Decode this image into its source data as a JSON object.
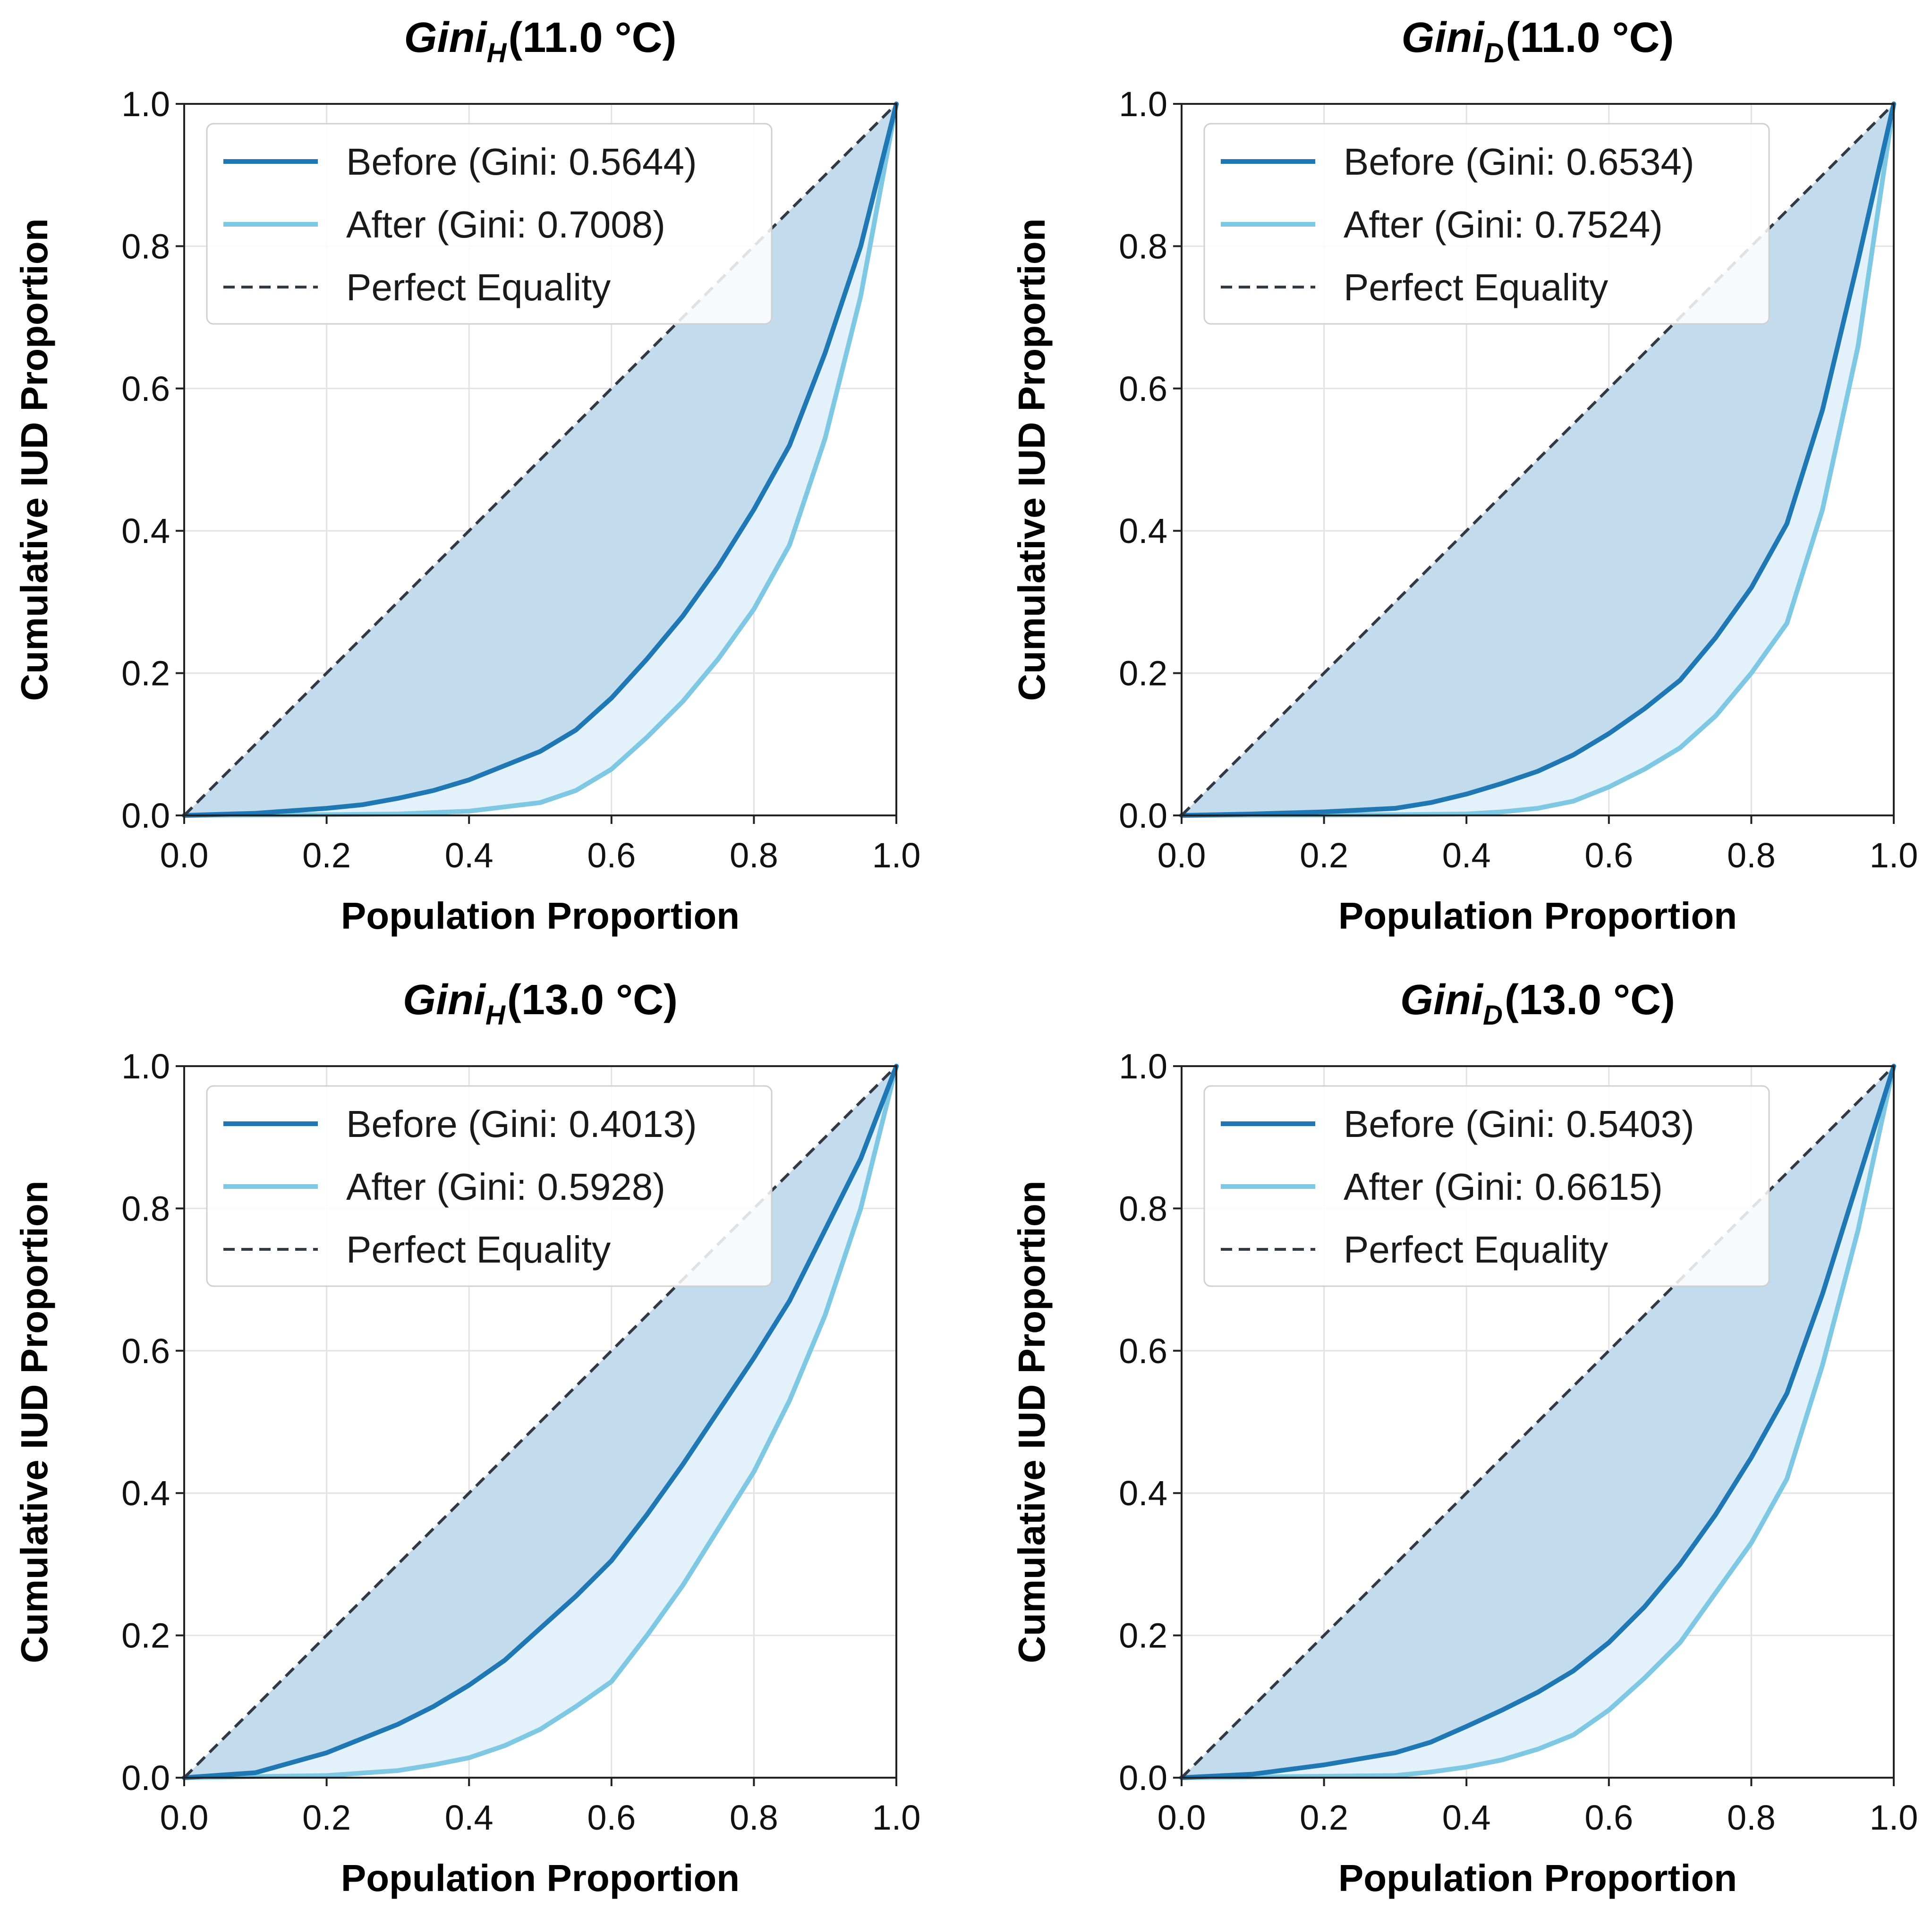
{
  "colors": {
    "before": "#1f77b4",
    "after": "#7ec8e3",
    "equality": "#2f3a45",
    "fill_before": "#c2dcee",
    "fill_after": "#e3f2fa"
  },
  "chart_data": [
    {
      "type": "line",
      "title_main": "Gini",
      "title_sub": "H",
      "title_rest": "(11.0 °C)",
      "xlabel": "Population Proportion",
      "ylabel": "Cumulative IUD Proportion",
      "xlim": [
        0,
        1
      ],
      "ylim": [
        0,
        1
      ],
      "xticks": [
        "0.0",
        "0.2",
        "0.4",
        "0.6",
        "0.8",
        "1.0"
      ],
      "yticks": [
        "0.0",
        "0.2",
        "0.4",
        "0.6",
        "0.8",
        "1.0"
      ],
      "grid": true,
      "legend_position": "top-left",
      "series": [
        {
          "name": "Before (Gini: 0.5644)",
          "role": "before",
          "x": [
            0,
            0.1,
            0.2,
            0.25,
            0.3,
            0.35,
            0.4,
            0.45,
            0.5,
            0.55,
            0.6,
            0.65,
            0.7,
            0.75,
            0.8,
            0.85,
            0.9,
            0.95,
            1.0
          ],
          "y": [
            0,
            0.003,
            0.01,
            0.015,
            0.024,
            0.035,
            0.05,
            0.07,
            0.09,
            0.12,
            0.165,
            0.22,
            0.28,
            0.35,
            0.43,
            0.52,
            0.65,
            0.8,
            1.0
          ]
        },
        {
          "name": "After (Gini: 0.7008)",
          "role": "after",
          "x": [
            0,
            0.2,
            0.3,
            0.4,
            0.5,
            0.55,
            0.6,
            0.65,
            0.7,
            0.75,
            0.8,
            0.85,
            0.9,
            0.95,
            1.0
          ],
          "y": [
            0,
            0.001,
            0.002,
            0.006,
            0.018,
            0.035,
            0.065,
            0.11,
            0.16,
            0.22,
            0.29,
            0.38,
            0.53,
            0.73,
            1.0
          ]
        },
        {
          "name": "Perfect Equality",
          "role": "equality",
          "x": [
            0,
            1
          ],
          "y": [
            0,
            1
          ]
        }
      ]
    },
    {
      "type": "line",
      "title_main": "Gini",
      "title_sub": "D",
      "title_rest": "(11.0 °C)",
      "xlabel": "Population Proportion",
      "ylabel": "Cumulative IUD Proportion",
      "xlim": [
        0,
        1
      ],
      "ylim": [
        0,
        1
      ],
      "xticks": [
        "0.0",
        "0.2",
        "0.4",
        "0.6",
        "0.8",
        "1.0"
      ],
      "yticks": [
        "0.0",
        "0.2",
        "0.4",
        "0.6",
        "0.8",
        "1.0"
      ],
      "grid": true,
      "legend_position": "top-left",
      "series": [
        {
          "name": "Before (Gini: 0.6534)",
          "role": "before",
          "x": [
            0,
            0.1,
            0.2,
            0.3,
            0.35,
            0.4,
            0.45,
            0.5,
            0.55,
            0.6,
            0.65,
            0.7,
            0.75,
            0.8,
            0.85,
            0.9,
            0.95,
            1.0
          ],
          "y": [
            0,
            0.002,
            0.005,
            0.01,
            0.018,
            0.03,
            0.045,
            0.062,
            0.085,
            0.115,
            0.15,
            0.19,
            0.25,
            0.32,
            0.41,
            0.57,
            0.78,
            1.0
          ]
        },
        {
          "name": "After (Gini: 0.7524)",
          "role": "after",
          "x": [
            0,
            0.3,
            0.4,
            0.45,
            0.5,
            0.55,
            0.6,
            0.65,
            0.7,
            0.75,
            0.8,
            0.85,
            0.9,
            0.95,
            1.0
          ],
          "y": [
            0,
            0.001,
            0.002,
            0.005,
            0.01,
            0.02,
            0.04,
            0.065,
            0.095,
            0.14,
            0.2,
            0.27,
            0.43,
            0.66,
            1.0
          ]
        },
        {
          "name": "Perfect Equality",
          "role": "equality",
          "x": [
            0,
            1
          ],
          "y": [
            0,
            1
          ]
        }
      ]
    },
    {
      "type": "line",
      "title_main": "Gini",
      "title_sub": "H",
      "title_rest": "(13.0 °C)",
      "xlabel": "Population Proportion",
      "ylabel": "Cumulative IUD Proportion",
      "xlim": [
        0,
        1
      ],
      "ylim": [
        0,
        1
      ],
      "xticks": [
        "0.0",
        "0.2",
        "0.4",
        "0.6",
        "0.8",
        "1.0"
      ],
      "yticks": [
        "0.0",
        "0.2",
        "0.4",
        "0.6",
        "0.8",
        "1.0"
      ],
      "grid": true,
      "legend_position": "top-left",
      "series": [
        {
          "name": "Before (Gini: 0.4013)",
          "role": "before",
          "x": [
            0,
            0.1,
            0.2,
            0.3,
            0.35,
            0.4,
            0.45,
            0.5,
            0.55,
            0.6,
            0.65,
            0.7,
            0.75,
            0.8,
            0.85,
            0.9,
            0.95,
            1.0
          ],
          "y": [
            0,
            0.007,
            0.035,
            0.075,
            0.1,
            0.13,
            0.165,
            0.21,
            0.255,
            0.305,
            0.37,
            0.44,
            0.515,
            0.59,
            0.67,
            0.77,
            0.87,
            1.0
          ]
        },
        {
          "name": "After (Gini: 0.5928)",
          "role": "after",
          "x": [
            0,
            0.2,
            0.3,
            0.35,
            0.4,
            0.45,
            0.5,
            0.55,
            0.6,
            0.65,
            0.7,
            0.75,
            0.8,
            0.85,
            0.9,
            0.95,
            1.0
          ],
          "y": [
            0,
            0.003,
            0.01,
            0.018,
            0.028,
            0.045,
            0.068,
            0.1,
            0.135,
            0.2,
            0.27,
            0.35,
            0.43,
            0.53,
            0.65,
            0.8,
            1.0
          ]
        },
        {
          "name": "Perfect Equality",
          "role": "equality",
          "x": [
            0,
            1
          ],
          "y": [
            0,
            1
          ]
        }
      ]
    },
    {
      "type": "line",
      "title_main": "Gini",
      "title_sub": "D",
      "title_rest": "(13.0 °C)",
      "xlabel": "Population Proportion",
      "ylabel": "Cumulative IUD Proportion",
      "xlim": [
        0,
        1
      ],
      "ylim": [
        0,
        1
      ],
      "xticks": [
        "0.0",
        "0.2",
        "0.4",
        "0.6",
        "0.8",
        "1.0"
      ],
      "yticks": [
        "0.0",
        "0.2",
        "0.4",
        "0.6",
        "0.8",
        "1.0"
      ],
      "grid": true,
      "legend_position": "top-left",
      "series": [
        {
          "name": "Before (Gini: 0.5403)",
          "role": "before",
          "x": [
            0,
            0.1,
            0.2,
            0.3,
            0.35,
            0.4,
            0.45,
            0.5,
            0.55,
            0.6,
            0.65,
            0.7,
            0.75,
            0.8,
            0.85,
            0.9,
            0.95,
            1.0
          ],
          "y": [
            0,
            0.005,
            0.018,
            0.035,
            0.05,
            0.072,
            0.095,
            0.12,
            0.15,
            0.19,
            0.24,
            0.3,
            0.37,
            0.45,
            0.54,
            0.68,
            0.84,
            1.0
          ]
        },
        {
          "name": "After (Gini: 0.6615)",
          "role": "after",
          "x": [
            0,
            0.3,
            0.35,
            0.4,
            0.45,
            0.5,
            0.55,
            0.6,
            0.65,
            0.7,
            0.75,
            0.8,
            0.85,
            0.9,
            0.95,
            1.0
          ],
          "y": [
            0,
            0.003,
            0.008,
            0.015,
            0.025,
            0.04,
            0.06,
            0.095,
            0.14,
            0.19,
            0.26,
            0.33,
            0.42,
            0.58,
            0.77,
            1.0
          ]
        },
        {
          "name": "Perfect Equality",
          "role": "equality",
          "x": [
            0,
            1
          ],
          "y": [
            0,
            1
          ]
        }
      ]
    }
  ]
}
